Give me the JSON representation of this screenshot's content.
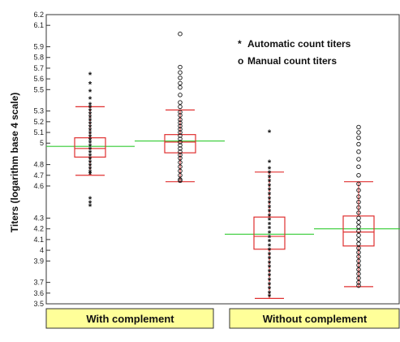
{
  "chart_data": {
    "type": "box",
    "ylabel": "Titers (logarithm base 4 scale)",
    "yscale": "log4",
    "ylim": [
      3.5,
      6.2
    ],
    "yticks": [
      3.5,
      3.6,
      3.7,
      3.9,
      4,
      4.1,
      4.2,
      4.3,
      4.6,
      4.7,
      4.8,
      5,
      5.1,
      5.2,
      5.3,
      5.5,
      5.6,
      5.7,
      5.8,
      5.9,
      6.1,
      6.2
    ],
    "groups": [
      "With complement",
      "Without complement"
    ],
    "legend": [
      {
        "marker": "*",
        "label": "Automatic count titers"
      },
      {
        "marker": "o",
        "label": "Manual count titers"
      }
    ],
    "legend_position": "top-right",
    "colors": {
      "box": "#e03030",
      "mean_line": "#33cc33",
      "group_label_bg": "#ffff99",
      "points": "#111111"
    },
    "series": [
      {
        "group": "With complement",
        "marker": "*",
        "mean": 4.97,
        "q1": 4.87,
        "median": 4.95,
        "q3": 5.05,
        "whisker_low": 4.7,
        "whisker_high": 5.34,
        "points": [
          4.41,
          4.44,
          4.48,
          5.55,
          5.64,
          5.48,
          5.41,
          5.36,
          5.33,
          5.3,
          5.27,
          5.24,
          5.21,
          5.18,
          5.15,
          5.12,
          5.09,
          5.06,
          5.03,
          5.0,
          4.97,
          4.94,
          4.91,
          4.88,
          4.85,
          4.82,
          4.79,
          4.76,
          4.73,
          4.71
        ]
      },
      {
        "group": "With complement",
        "marker": "o",
        "mean": 5.02,
        "q1": 4.91,
        "median": 5.01,
        "q3": 5.08,
        "whisker_low": 4.64,
        "whisker_high": 5.31,
        "points": [
          6.02,
          5.71,
          5.66,
          5.61,
          5.56,
          5.52,
          5.45,
          5.38,
          5.34,
          5.29,
          5.26,
          5.22,
          5.19,
          5.16,
          5.13,
          5.1,
          5.07,
          5.04,
          5.01,
          4.98,
          4.95,
          4.92,
          4.89,
          4.86,
          4.82,
          4.78,
          4.74,
          4.7,
          4.66,
          4.65
        ]
      },
      {
        "group": "Without complement",
        "marker": "*",
        "mean": 4.15,
        "q1": 4.01,
        "median": 4.13,
        "q3": 4.31,
        "whisker_low": 3.55,
        "whisker_high": 4.73,
        "points": [
          5.1,
          4.82,
          4.76,
          4.72,
          4.68,
          4.64,
          4.6,
          4.56,
          4.52,
          4.48,
          4.44,
          4.4,
          4.36,
          4.32,
          4.28,
          4.24,
          4.2,
          4.16,
          4.12,
          4.08,
          4.04,
          4.0,
          3.96,
          3.92,
          3.88,
          3.84,
          3.8,
          3.76,
          3.72,
          3.68,
          3.64,
          3.6,
          3.57
        ]
      },
      {
        "group": "Without complement",
        "marker": "o",
        "mean": 4.2,
        "q1": 4.04,
        "median": 4.17,
        "q3": 4.32,
        "whisker_low": 3.66,
        "whisker_high": 4.64,
        "points": [
          5.15,
          5.1,
          5.05,
          4.99,
          4.92,
          4.85,
          4.78,
          4.7,
          4.62,
          4.56,
          4.5,
          4.45,
          4.4,
          4.35,
          4.3,
          4.26,
          4.22,
          4.18,
          4.14,
          4.1,
          4.06,
          4.02,
          3.98,
          3.94,
          3.9,
          3.86,
          3.82,
          3.78,
          3.74,
          3.7,
          3.67
        ]
      }
    ]
  }
}
